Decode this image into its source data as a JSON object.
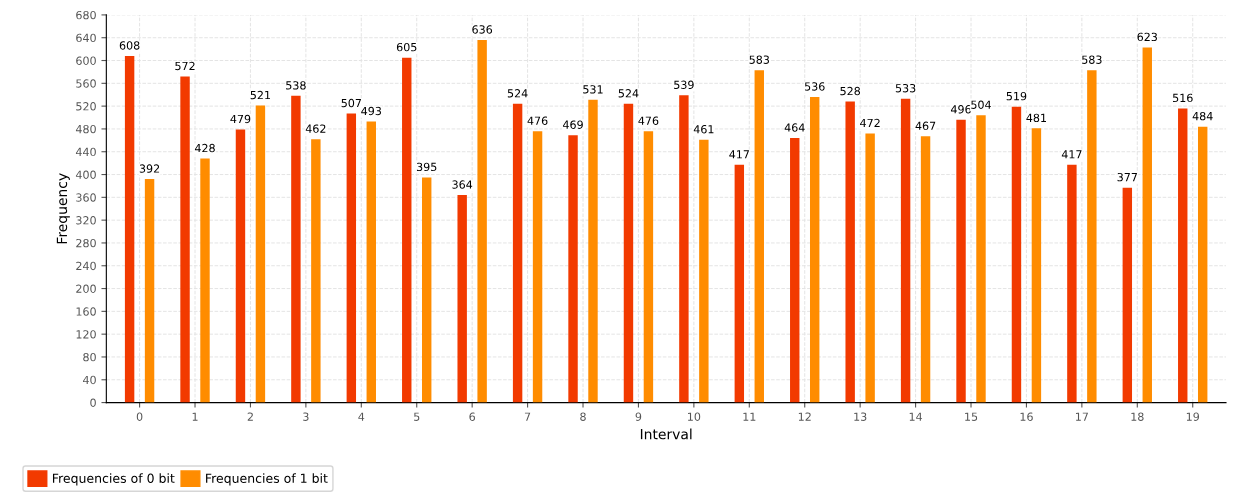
{
  "chart_data": {
    "type": "bar",
    "xlabel": "Interval",
    "ylabel": "Frequency",
    "categories": [
      "0",
      "1",
      "2",
      "3",
      "4",
      "5",
      "6",
      "7",
      "8",
      "9",
      "10",
      "11",
      "12",
      "13",
      "14",
      "15",
      "16",
      "17",
      "18",
      "19"
    ],
    "series": [
      {
        "name": "Frequencies of 0 bit",
        "color": "#f23a00",
        "values": [
          608,
          572,
          479,
          538,
          507,
          605,
          364,
          524,
          469,
          524,
          539,
          417,
          464,
          528,
          533,
          496,
          519,
          417,
          377,
          516
        ]
      },
      {
        "name": "Frequencies of 1 bit",
        "color": "#ff8c00",
        "values": [
          392,
          428,
          521,
          462,
          493,
          395,
          636,
          476,
          531,
          476,
          461,
          583,
          536,
          472,
          467,
          504,
          481,
          583,
          623,
          484
        ]
      }
    ],
    "ylim": [
      0,
      680
    ],
    "yticks": [
      0,
      40,
      80,
      120,
      160,
      200,
      240,
      280,
      320,
      360,
      400,
      440,
      480,
      520,
      560,
      600,
      640,
      680
    ],
    "grid": true,
    "legend": "bottom left",
    "data_labels": true
  }
}
